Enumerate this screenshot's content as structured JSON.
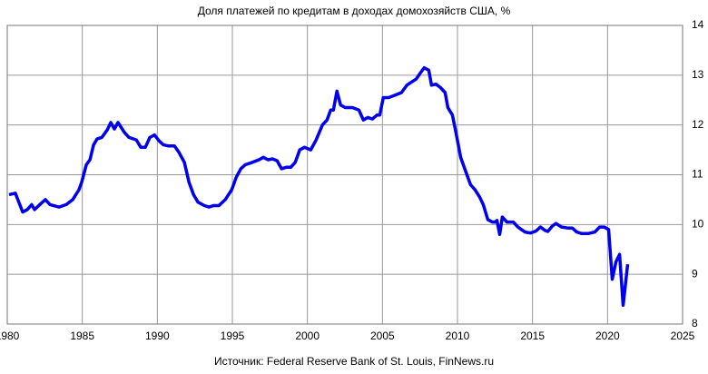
{
  "chart_data": {
    "type": "line",
    "title": "Доля платежей по кредитам в доходах домохозяйств США, %",
    "source": "Источник: Federal Reserve Bank of St. Louis, FinNews.ru",
    "xlim": [
      1980,
      2025
    ],
    "xticks": [
      1980,
      1985,
      1990,
      1995,
      2000,
      2005,
      2010,
      2015,
      2020,
      2025
    ],
    "ylim": [
      8,
      14
    ],
    "yticks": [
      8,
      9,
      10,
      11,
      12,
      13,
      14
    ],
    "grid": true,
    "y_axis_side": "right",
    "series": [
      {
        "color": "#0000ee",
        "x": [
          1980.12,
          1980.54,
          1981.03,
          1981.33,
          1981.63,
          1981.82,
          1982.24,
          1982.54,
          1982.85,
          1983.45,
          1983.93,
          1984.36,
          1984.78,
          1984.96,
          1985.27,
          1985.51,
          1985.75,
          1985.99,
          1986.3,
          1986.66,
          1986.9,
          1987.14,
          1987.38,
          1987.81,
          1988.11,
          1988.6,
          1988.9,
          1989.2,
          1989.5,
          1989.81,
          1990.11,
          1990.41,
          1990.71,
          1991.14,
          1991.44,
          1991.8,
          1992.11,
          1992.41,
          1992.71,
          1993.14,
          1993.44,
          1993.74,
          1994.1,
          1994.53,
          1994.96,
          1995.26,
          1995.56,
          1995.86,
          1996.34,
          1996.77,
          1997.07,
          1997.37,
          1997.68,
          1997.98,
          1998.28,
          1998.58,
          1998.89,
          1999.19,
          1999.49,
          1999.8,
          2000.22,
          2000.58,
          2001.0,
          2001.31,
          2001.55,
          2001.73,
          2001.97,
          2002.21,
          2002.52,
          2002.82,
          2003.0,
          2003.43,
          2003.73,
          2004.03,
          2004.33,
          2004.64,
          2004.82,
          2005.06,
          2005.42,
          2005.85,
          2006.27,
          2006.63,
          2006.88,
          2007.24,
          2007.54,
          2007.78,
          2008.09,
          2008.27,
          2008.57,
          2008.87,
          2009.18,
          2009.36,
          2009.66,
          2009.9,
          2010.21,
          2010.51,
          2010.87,
          2011.17,
          2011.48,
          2011.72,
          2012.02,
          2012.32,
          2012.51,
          2012.63,
          2012.81,
          2012.99,
          2013.29,
          2013.72,
          2014.02,
          2014.5,
          2014.87,
          2015.23,
          2015.53,
          2015.84,
          2016.02,
          2016.32,
          2016.56,
          2016.93,
          2017.35,
          2017.65,
          2017.95,
          2018.26,
          2018.74,
          2019.16,
          2019.47,
          2019.77,
          2020.07,
          2020.31,
          2020.56,
          2020.8,
          2021.04,
          2021.34
        ],
        "values": [
          10.6,
          10.63,
          10.25,
          10.3,
          10.4,
          10.3,
          10.42,
          10.5,
          10.4,
          10.35,
          10.4,
          10.5,
          10.7,
          10.85,
          11.2,
          11.3,
          11.6,
          11.72,
          11.75,
          11.9,
          12.05,
          11.92,
          12.05,
          11.85,
          11.75,
          11.7,
          11.55,
          11.55,
          11.75,
          11.8,
          11.68,
          11.6,
          11.58,
          11.58,
          11.45,
          11.25,
          10.85,
          10.6,
          10.45,
          10.38,
          10.35,
          10.38,
          10.38,
          10.5,
          10.7,
          10.95,
          11.12,
          11.2,
          11.25,
          11.3,
          11.35,
          11.3,
          11.32,
          11.28,
          11.12,
          11.15,
          11.15,
          11.25,
          11.5,
          11.55,
          11.5,
          11.7,
          12.0,
          12.1,
          12.3,
          12.3,
          12.68,
          12.4,
          12.35,
          12.35,
          12.35,
          12.3,
          12.1,
          12.15,
          12.12,
          12.2,
          12.2,
          12.55,
          12.55,
          12.6,
          12.65,
          12.8,
          12.85,
          12.92,
          13.05,
          13.15,
          13.1,
          12.8,
          12.82,
          12.75,
          12.65,
          12.35,
          12.2,
          11.85,
          11.35,
          11.1,
          10.8,
          10.7,
          10.55,
          10.4,
          10.1,
          10.05,
          10.05,
          10.08,
          9.8,
          10.15,
          10.05,
          10.05,
          9.95,
          9.85,
          9.83,
          9.87,
          9.95,
          9.88,
          9.86,
          9.97,
          10.02,
          9.95,
          9.93,
          9.93,
          9.85,
          9.82,
          9.82,
          9.85,
          9.95,
          9.95,
          9.9,
          8.9,
          9.25,
          9.4,
          8.38,
          9.2
        ]
      }
    ]
  }
}
